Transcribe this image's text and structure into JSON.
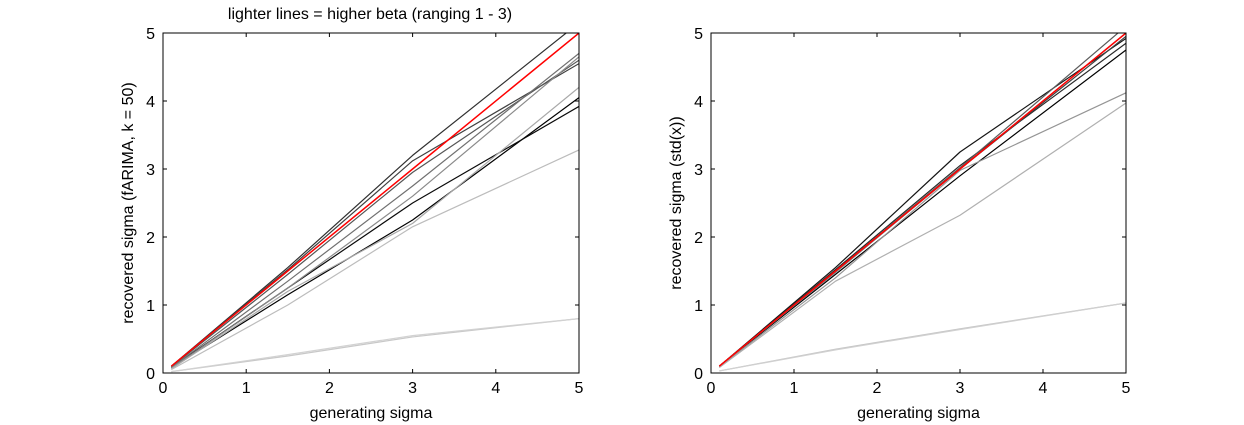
{
  "figure_title": "lighter lines = higher beta (ranging 1 - 3)",
  "chart_data": [
    {
      "type": "line",
      "xlabel": "generating sigma",
      "ylabel": "recovered sigma (fARIMA, k = 50)",
      "xlim": [
        0,
        5
      ],
      "ylim": [
        0,
        5
      ],
      "xticks": [
        "0",
        "1",
        "2",
        "3",
        "4",
        "5"
      ],
      "yticks": [
        "0",
        "1",
        "2",
        "3",
        "4",
        "5"
      ],
      "grid": false,
      "x": [
        0.1,
        1.5,
        3,
        5
      ],
      "series": [
        {
          "color": "#000000",
          "values": [
            0.08,
            1.15,
            2.25,
            4.05
          ]
        },
        {
          "color": "#0a0a0a",
          "values": [
            0.08,
            1.25,
            2.5,
            3.92
          ]
        },
        {
          "color": "#303030",
          "values": [
            0.1,
            1.55,
            3.2,
            5.15
          ]
        },
        {
          "color": "#404040",
          "values": [
            0.1,
            1.52,
            3.12,
            4.55
          ]
        },
        {
          "color": "#555555",
          "values": [
            0.09,
            1.45,
            2.95,
            4.6
          ]
        },
        {
          "color": "#707070",
          "values": [
            0.08,
            1.35,
            2.75,
            4.7
          ]
        },
        {
          "color": "#8a8a8a",
          "values": [
            0.07,
            1.25,
            2.6,
            4.65
          ]
        },
        {
          "color": "#a8a8a8",
          "values": [
            0.06,
            1.2,
            2.2,
            4.2
          ]
        },
        {
          "color": "#bcbcbc",
          "values": [
            0.05,
            1.0,
            2.15,
            3.28
          ]
        },
        {
          "color": "#c8c8c8",
          "values": [
            0.02,
            0.25,
            0.53,
            0.8
          ]
        },
        {
          "color": "#d2d2d2",
          "values": [
            0.02,
            0.27,
            0.55,
            0.8
          ]
        },
        {
          "color": "#ff0000",
          "values": [
            0.1,
            1.5,
            3.0,
            5.0
          ]
        }
      ]
    },
    {
      "type": "line",
      "xlabel": "generating sigma",
      "ylabel": "recovered sigma (std(x))",
      "xlim": [
        0,
        5
      ],
      "ylim": [
        0,
        5
      ],
      "xticks": [
        "0",
        "1",
        "2",
        "3",
        "4",
        "5"
      ],
      "yticks": [
        "0",
        "1",
        "2",
        "3",
        "4",
        "5"
      ],
      "grid": false,
      "x": [
        0.1,
        1.5,
        3,
        5
      ],
      "series": [
        {
          "color": "#000000",
          "values": [
            0.1,
            1.45,
            2.9,
            4.75
          ]
        },
        {
          "color": "#151515",
          "values": [
            0.1,
            1.55,
            3.25,
            4.92
          ]
        },
        {
          "color": "#2a2a2a",
          "values": [
            0.1,
            1.52,
            3.05,
            4.85
          ]
        },
        {
          "color": "#404040",
          "values": [
            0.1,
            1.5,
            3.0,
            4.95
          ]
        },
        {
          "color": "#5a5a5a",
          "values": [
            0.1,
            1.5,
            3.02,
            5.1
          ]
        },
        {
          "color": "#777777",
          "values": [
            0.1,
            1.48,
            3.0,
            5.0
          ]
        },
        {
          "color": "#959595",
          "values": [
            0.09,
            1.4,
            2.98,
            4.12
          ]
        },
        {
          "color": "#b0b0b0",
          "values": [
            0.08,
            1.35,
            2.32,
            3.97
          ]
        },
        {
          "color": "#c4c4c4",
          "values": [
            0.03,
            0.35,
            0.65,
            1.03
          ]
        },
        {
          "color": "#d0d0d0",
          "values": [
            0.03,
            0.34,
            0.64,
            1.03
          ]
        },
        {
          "color": "#ff0000",
          "values": [
            0.1,
            1.5,
            3.0,
            5.0
          ]
        }
      ]
    }
  ]
}
